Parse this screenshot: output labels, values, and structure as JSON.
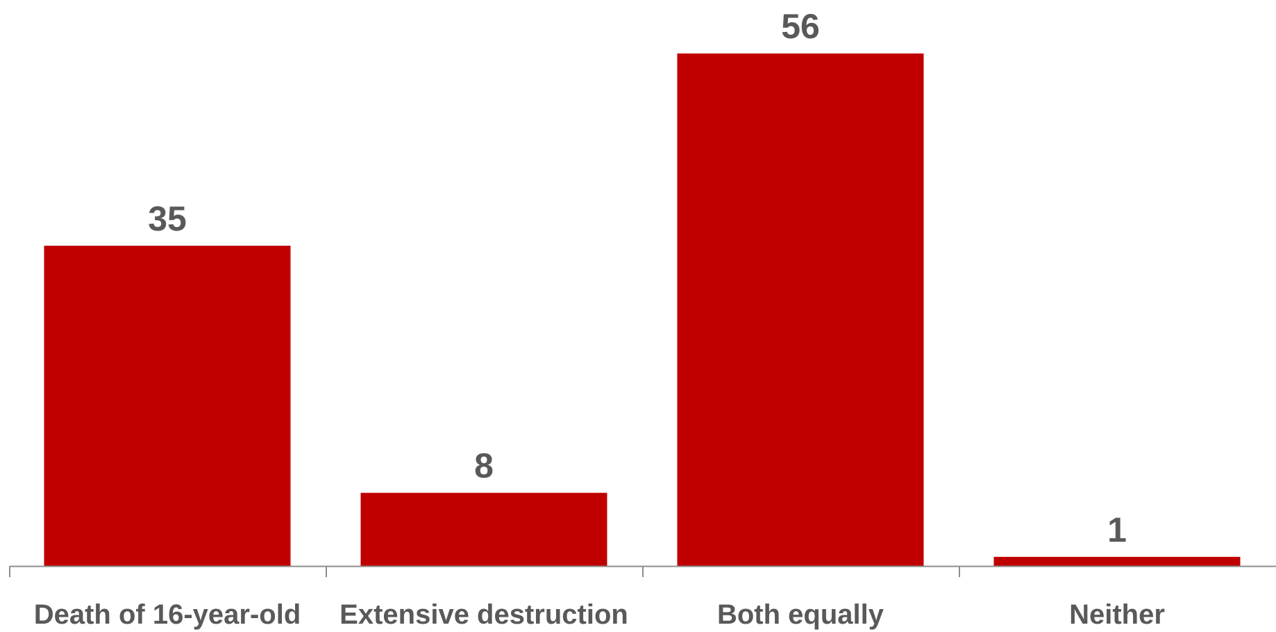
{
  "colors": {
    "bar": "#C00000",
    "text": "#595959",
    "axis": "#8C8C8C",
    "background": "#FFFFFF"
  },
  "chart_data": {
    "type": "bar",
    "categories": [
      "Death of 16-year-old",
      "Extensive destruction",
      "Both equally",
      "Neither"
    ],
    "values": [
      35,
      8,
      56,
      1
    ],
    "title": "",
    "xlabel": "",
    "ylabel": "",
    "ylim": [
      0,
      56
    ],
    "grid": false,
    "legend": "none",
    "data_labels": true
  }
}
